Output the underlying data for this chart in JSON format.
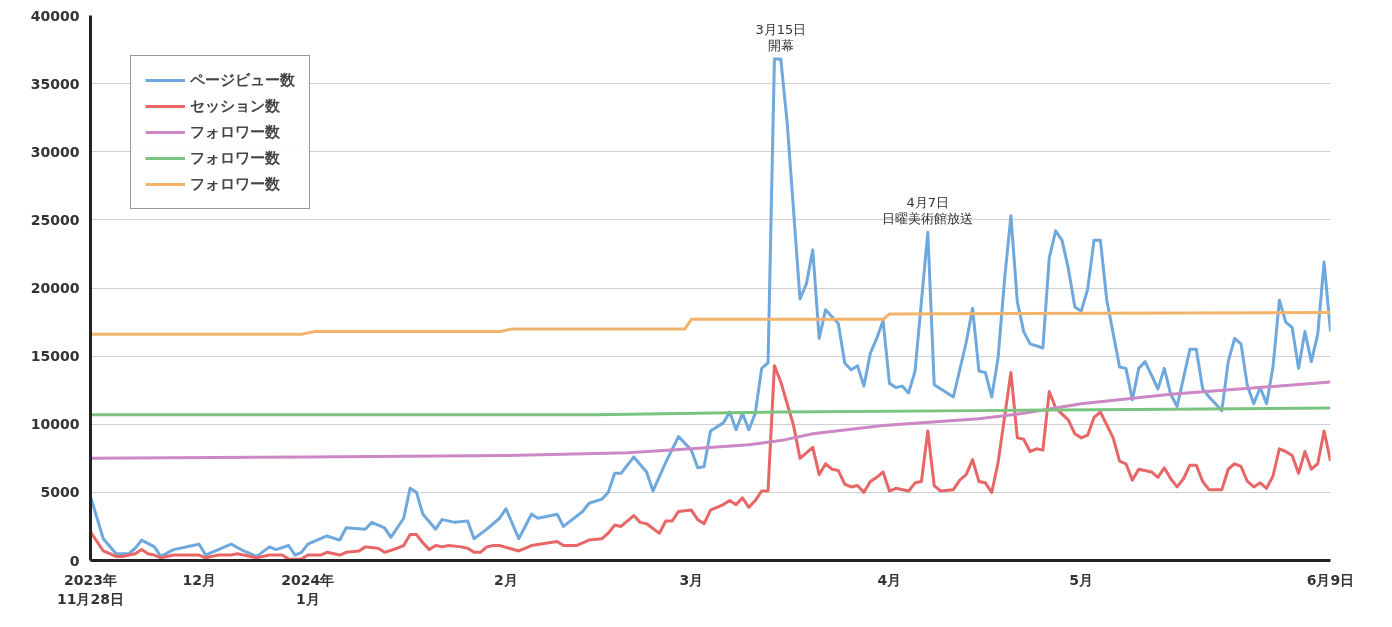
{
  "chart_data": {
    "type": "line",
    "xlim": [
      "2023-11-28",
      "2024-06-09"
    ],
    "ylim": [
      0,
      40000
    ],
    "xticks": [
      {
        "value": "2023-11-28",
        "label": "2023年\n11月28日"
      },
      {
        "value": "2023-12-15",
        "label": "12月"
      },
      {
        "value": "2024-01-01",
        "label": "2024年\n1月"
      },
      {
        "value": "2024-02-01",
        "label": "2月"
      },
      {
        "value": "2024-03-01",
        "label": "3月"
      },
      {
        "value": "2024-04-01",
        "label": "4月"
      },
      {
        "value": "2024-05-01",
        "label": "5月"
      },
      {
        "value": "2024-06-09",
        "label": "6月9日"
      }
    ],
    "yticks": [
      0,
      5000,
      10000,
      15000,
      20000,
      25000,
      30000,
      35000,
      40000
    ],
    "grid": "y",
    "legend": "top left",
    "annotations": [
      {
        "text": "3月15日",
        "x": "2024-03-15",
        "y": 36800
      },
      {
        "text": "開幕",
        "x": "2024-03-15",
        "y": 36800
      },
      {
        "text": "4月7日",
        "x": "2024-04-07",
        "y": 24100
      },
      {
        "text": "日曜美術館放送",
        "x": "2024-04-07",
        "y": 24100
      }
    ],
    "series": [
      {
        "name": "ページビュー数",
        "color": "#6fa8dc",
        "x": [
          "2023-11-28",
          "2023-11-30",
          "2023-12-02",
          "2023-12-04",
          "2023-12-05",
          "2023-12-06",
          "2023-12-08",
          "2023-12-09",
          "2023-12-11",
          "2023-12-14",
          "2023-12-15",
          "2023-12-16",
          "2023-12-18",
          "2023-12-20",
          "2023-12-22",
          "2023-12-24",
          "2023-12-26",
          "2023-12-27",
          "2023-12-29",
          "2023-12-30",
          "2023-12-31",
          "2024-01-01",
          "2024-01-04",
          "2024-01-06",
          "2024-01-07",
          "2024-01-10",
          "2024-01-11",
          "2024-01-13",
          "2024-01-14",
          "2024-01-16",
          "2024-01-17",
          "2024-01-18",
          "2024-01-19",
          "2024-01-21",
          "2024-01-22",
          "2024-01-24",
          "2024-01-26",
          "2024-01-27",
          "2024-01-29",
          "2024-01-31",
          "2024-02-01",
          "2024-02-03",
          "2024-02-04",
          "2024-02-05",
          "2024-02-06",
          "2024-02-09",
          "2024-02-10",
          "2024-02-13",
          "2024-02-14",
          "2024-02-16",
          "2024-02-17",
          "2024-02-18",
          "2024-02-19",
          "2024-02-21",
          "2024-02-23",
          "2024-02-24",
          "2024-02-26",
          "2024-02-28",
          "2024-03-01",
          "2024-03-02",
          "2024-03-03",
          "2024-03-04",
          "2024-03-06",
          "2024-03-07",
          "2024-03-08",
          "2024-03-09",
          "2024-03-10",
          "2024-03-11",
          "2024-03-12",
          "2024-03-13",
          "2024-03-14",
          "2024-03-15",
          "2024-03-16",
          "2024-03-18",
          "2024-03-19",
          "2024-03-20",
          "2024-03-21",
          "2024-03-22",
          "2024-03-24",
          "2024-03-25",
          "2024-03-26",
          "2024-03-27",
          "2024-03-28",
          "2024-03-29",
          "2024-03-30",
          "2024-03-31",
          "2024-04-01",
          "2024-04-02",
          "2024-04-03",
          "2024-04-04",
          "2024-04-05",
          "2024-04-07",
          "2024-04-08",
          "2024-04-11",
          "2024-04-13",
          "2024-04-14",
          "2024-04-15",
          "2024-04-16",
          "2024-04-17",
          "2024-04-18",
          "2024-04-19",
          "2024-04-20",
          "2024-04-21",
          "2024-04-22",
          "2024-04-23",
          "2024-04-25",
          "2024-04-26",
          "2024-04-27",
          "2024-04-28",
          "2024-04-29",
          "2024-04-30",
          "2024-05-01",
          "2024-05-02",
          "2024-05-03",
          "2024-05-04",
          "2024-05-05",
          "2024-05-07",
          "2024-05-08",
          "2024-05-09",
          "2024-05-10",
          "2024-05-11",
          "2024-05-13",
          "2024-05-14",
          "2024-05-15",
          "2024-05-16",
          "2024-05-18",
          "2024-05-19",
          "2024-05-20",
          "2024-05-21",
          "2024-05-22",
          "2024-05-23",
          "2024-05-24",
          "2024-05-25",
          "2024-05-26",
          "2024-05-27",
          "2024-05-28",
          "2024-05-29",
          "2024-05-30",
          "2024-05-31",
          "2024-06-01",
          "2024-06-02",
          "2024-06-03",
          "2024-06-04",
          "2024-06-05",
          "2024-06-06",
          "2024-06-07",
          "2024-06-08",
          "2024-06-09"
        ],
        "values": [
          4700,
          1600,
          500,
          500,
          900,
          1500,
          1000,
          300,
          800,
          1100,
          1200,
          400,
          800,
          1200,
          700,
          300,
          1000,
          800,
          1100,
          400,
          600,
          1200,
          1800,
          1500,
          2400,
          2300,
          2800,
          2400,
          1700,
          3100,
          5300,
          5000,
          3400,
          2300,
          3000,
          2800,
          2900,
          1600,
          2300,
          3100,
          3800,
          1600,
          2500,
          3400,
          3100,
          3400,
          2500,
          3600,
          4200,
          4500,
          5000,
          6400,
          6400,
          7600,
          6500,
          5100,
          7200,
          9100,
          8100,
          6800,
          6900,
          9500,
          10100,
          10900,
          9600,
          10800,
          9600,
          10800,
          14100,
          14500,
          36800,
          36800,
          32100,
          19200,
          20300,
          22800,
          16300,
          18400,
          17400,
          14500,
          14000,
          14300,
          12800,
          15200,
          16300,
          17600,
          13000,
          12700,
          12800,
          12300,
          13900,
          24100,
          12900,
          12000,
          16000,
          18500,
          13900,
          13800,
          12000,
          14900,
          20600,
          25300,
          19000,
          16800,
          15900,
          15600,
          22200,
          24200,
          23500,
          21400,
          18600,
          18300,
          19900,
          23500,
          23500,
          19100,
          14200,
          14100,
          11800,
          14100,
          14600,
          12600,
          14100,
          12200,
          11300,
          15500,
          15500,
          12600,
          12000,
          11500,
          11000,
          14600,
          16300,
          15900,
          12800,
          11500,
          12700,
          11500,
          14200,
          19100,
          17500,
          17100,
          14100,
          16800,
          14600,
          16600,
          21900,
          16800
        ]
      },
      {
        "name": "セッション数",
        "color": "#e86666",
        "x": [
          "2023-11-28",
          "2023-11-30",
          "2023-12-02",
          "2023-12-03",
          "2023-12-04",
          "2023-12-05",
          "2023-12-06",
          "2023-12-07",
          "2023-12-08",
          "2023-12-09",
          "2023-12-11",
          "2023-12-13",
          "2023-12-15",
          "2023-12-16",
          "2023-12-18",
          "2023-12-20",
          "2023-12-21",
          "2023-12-24",
          "2023-12-26",
          "2023-12-28",
          "2023-12-29",
          "2023-12-31",
          "2024-01-01",
          "2024-01-03",
          "2024-01-04",
          "2024-01-06",
          "2024-01-07",
          "2024-01-09",
          "2024-01-10",
          "2024-01-12",
          "2024-01-13",
          "2024-01-15",
          "2024-01-16",
          "2024-01-17",
          "2024-01-18",
          "2024-01-19",
          "2024-01-20",
          "2024-01-21",
          "2024-01-22",
          "2024-01-23",
          "2024-01-25",
          "2024-01-26",
          "2024-01-27",
          "2024-01-28",
          "2024-01-29",
          "2024-01-30",
          "2024-01-31",
          "2024-02-03",
          "2024-02-05",
          "2024-02-09",
          "2024-02-10",
          "2024-02-12",
          "2024-02-14",
          "2024-02-16",
          "2024-02-17",
          "2024-02-18",
          "2024-02-19",
          "2024-02-21",
          "2024-02-22",
          "2024-02-23",
          "2024-02-25",
          "2024-02-26",
          "2024-02-27",
          "2024-02-28",
          "2024-03-01",
          "2024-03-02",
          "2024-03-03",
          "2024-03-04",
          "2024-03-06",
          "2024-03-07",
          "2024-03-08",
          "2024-03-09",
          "2024-03-10",
          "2024-03-11",
          "2024-03-12",
          "2024-03-13",
          "2024-03-14",
          "2024-03-15",
          "2024-03-17",
          "2024-03-18",
          "2024-03-19",
          "2024-03-20",
          "2024-03-21",
          "2024-03-22",
          "2024-03-23",
          "2024-03-24",
          "2024-03-25",
          "2024-03-26",
          "2024-03-27",
          "2024-03-28",
          "2024-03-29",
          "2024-03-30",
          "2024-03-31",
          "2024-04-01",
          "2024-04-02",
          "2024-04-04",
          "2024-04-05",
          "2024-04-06",
          "2024-04-07",
          "2024-04-08",
          "2024-04-09",
          "2024-04-11",
          "2024-04-12",
          "2024-04-13",
          "2024-04-14",
          "2024-04-15",
          "2024-04-16",
          "2024-04-17",
          "2024-04-18",
          "2024-04-20",
          "2024-04-21",
          "2024-04-22",
          "2024-04-23",
          "2024-04-24",
          "2024-04-25",
          "2024-04-26",
          "2024-04-27",
          "2024-04-29",
          "2024-04-30",
          "2024-05-01",
          "2024-05-02",
          "2024-05-03",
          "2024-05-04",
          "2024-05-06",
          "2024-05-07",
          "2024-05-08",
          "2024-05-09",
          "2024-05-10",
          "2024-05-12",
          "2024-05-13",
          "2024-05-14",
          "2024-05-15",
          "2024-05-16",
          "2024-05-17",
          "2024-05-18",
          "2024-05-19",
          "2024-05-20",
          "2024-05-21",
          "2024-05-23",
          "2024-05-24",
          "2024-05-25",
          "2024-05-26",
          "2024-05-27",
          "2024-05-28",
          "2024-05-29",
          "2024-05-30",
          "2024-05-31",
          "2024-06-01",
          "2024-06-02",
          "2024-06-03",
          "2024-06-04",
          "2024-06-05",
          "2024-06-06",
          "2024-06-07",
          "2024-06-08",
          "2024-06-09"
        ],
        "values": [
          2100,
          700,
          300,
          300,
          400,
          500,
          800,
          500,
          400,
          200,
          400,
          400,
          400,
          200,
          400,
          400,
          500,
          200,
          400,
          400,
          100,
          100,
          400,
          400,
          600,
          400,
          600,
          700,
          1000,
          900,
          600,
          900,
          1100,
          1900,
          1900,
          1300,
          800,
          1100,
          1000,
          1100,
          1000,
          900,
          600,
          600,
          1000,
          1100,
          1100,
          700,
          1100,
          1400,
          1100,
          1100,
          1500,
          1600,
          2000,
          2600,
          2500,
          3300,
          2800,
          2700,
          2000,
          2900,
          2900,
          3600,
          3700,
          3000,
          2700,
          3700,
          4100,
          4400,
          4100,
          4600,
          3900,
          4400,
          5100,
          5100,
          14300,
          13100,
          9900,
          7500,
          7900,
          8300,
          6300,
          7100,
          6700,
          6600,
          5600,
          5400,
          5500,
          5000,
          5800,
          6100,
          6500,
          5100,
          5300,
          5100,
          5700,
          5800,
          9500,
          5500,
          5100,
          5200,
          5900,
          6300,
          7400,
          5800,
          5700,
          5000,
          7200,
          13800,
          9000,
          8900,
          8000,
          8200,
          8100,
          12400,
          11200,
          10300,
          9300,
          9000,
          9200,
          10500,
          10900,
          9000,
          7300,
          7100,
          5900,
          6700,
          6500,
          6100,
          6800,
          6000,
          5400,
          6000,
          7000,
          7000,
          5800,
          5200,
          5200,
          6700,
          7100,
          6900,
          5800,
          5400,
          5700,
          5300,
          6200,
          8200,
          8000,
          7700,
          6400,
          8000,
          6700,
          7100,
          9500,
          7300
        ]
      },
      {
        "name": "フォロワー数",
        "color": "#cc88c4",
        "x": [
          "2023-11-28",
          "2024-01-01",
          "2024-02-01",
          "2024-02-20",
          "2024-03-01",
          "2024-03-10",
          "2024-03-15",
          "2024-03-20",
          "2024-03-31",
          "2024-04-15",
          "2024-04-22",
          "2024-05-01",
          "2024-05-15",
          "2024-06-09"
        ],
        "values": [
          7500,
          7600,
          7700,
          7900,
          8200,
          8500,
          8800,
          9300,
          9900,
          10400,
          10800,
          11500,
          12200,
          13100
        ]
      },
      {
        "name": "フォロワー数",
        "color": "#7ac47f",
        "x": [
          "2023-11-28",
          "2024-02-15",
          "2024-03-15",
          "2024-04-15",
          "2024-05-15",
          "2024-06-09"
        ],
        "values": [
          10700,
          10700,
          10900,
          11000,
          11100,
          11200
        ]
      },
      {
        "name": "フォロワー数",
        "color": "#f2b46a",
        "x": [
          "2023-11-28",
          "2023-12-31",
          "2024-01-02",
          "2024-01-31",
          "2024-02-02",
          "2024-02-29",
          "2024-03-01",
          "2024-03-31",
          "2024-04-01",
          "2024-06-09"
        ],
        "values": [
          16600,
          16600,
          16800,
          16800,
          17000,
          17000,
          17700,
          17700,
          18100,
          18200
        ]
      }
    ]
  }
}
